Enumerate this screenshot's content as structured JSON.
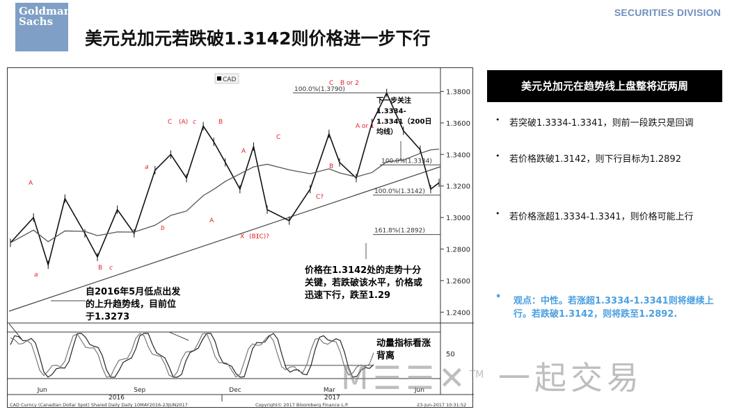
{
  "header": {
    "logo_text": "Goldman Sachs",
    "division": "SECURITIES DIVISION",
    "title": "美元兑加元若跌破1.3142则价格进一步下行"
  },
  "chart": {
    "legend": "CAD",
    "y_ticks": [
      "1.3800",
      "1.3600",
      "1.3400",
      "1.3200",
      "1.3000",
      "1.2800",
      "1.2600",
      "1.2400"
    ],
    "x_ticks": [
      "Jun",
      "Sep",
      "Dec",
      "Mar",
      "Jun"
    ],
    "year_labels": [
      "2016",
      "2017"
    ],
    "osc_tick": "50",
    "fib_levels": [
      "100.0%(1.3790)",
      "100.0%(1.3334)",
      "100.0%(1.3142)",
      "161.8%(1.2892)"
    ],
    "wave_labels": [
      "A",
      "a",
      "B",
      "c",
      "a",
      "b",
      "C",
      "(A)",
      "c",
      "B",
      "A",
      "A",
      "C",
      "X",
      "(B)",
      "(C)?",
      "C",
      "B or 2",
      "A or 1",
      "B",
      "C?"
    ],
    "footer_left": "CAD Curncy (Canadian Dollar Spot) Shared Daily  Daily 10MAY2016-23JUN2017",
    "footer_mid": "Copyright© 2017 Bloomberg Finance L.P.",
    "footer_right": "23-Jun-2017 10:31:52"
  },
  "chart_data": {
    "type": "line",
    "title": "",
    "series": [
      {
        "name": "CAD",
        "x": [
          "2016-05-10",
          "2016-06-01",
          "2016-06-15",
          "2016-07-01",
          "2016-07-20",
          "2016-08-01",
          "2016-08-20",
          "2016-09-05",
          "2016-09-25",
          "2016-10-10",
          "2016-10-25",
          "2016-11-10",
          "2016-11-20",
          "2016-12-01",
          "2016-12-15",
          "2016-12-28",
          "2017-01-10",
          "2017-01-31",
          "2017-02-20",
          "2017-03-10",
          "2017-03-20",
          "2017-04-05",
          "2017-04-20",
          "2017-05-04",
          "2017-05-20",
          "2017-06-05",
          "2017-06-15",
          "2017-06-23"
        ],
        "values": [
          1.284,
          1.3,
          1.27,
          1.312,
          1.29,
          1.275,
          1.305,
          1.29,
          1.33,
          1.34,
          1.325,
          1.358,
          1.348,
          1.335,
          1.318,
          1.345,
          1.305,
          1.298,
          1.318,
          1.353,
          1.335,
          1.325,
          1.36,
          1.379,
          1.355,
          1.343,
          1.318,
          1.322
        ]
      }
    ],
    "ylabel": "",
    "xlabel": "",
    "ylim": [
      1.234,
      1.393
    ]
  },
  "notes": {
    "next_focus": "下一步关注1.3334-1.3341（200日均线）",
    "key_level": "价格在1.3142处的走势十分关键，若跌破该水平，价格或迅速下行，跌至1.29",
    "trendline": "自2016年5月低点出发的上升趋势线，目前位于1.3273",
    "momentum": "动量指标看涨背离"
  },
  "panel": {
    "heading": "美元兑加元在趋势线上盘整将近两周",
    "bullets": [
      "若突破1.3334-1.3341，则前一段跌只是回调",
      "若价格跌破1.3142，则下行目标为1.2892",
      "若价格涨超1.3334-1.3341，则价格可能上行"
    ],
    "view": "观点：中性。若涨超1.3334-1.3341则将继续上行。若跌破1.3142，则将跌至1.2892."
  },
  "watermark": {
    "text": "一起交易",
    "tm": "TM"
  }
}
